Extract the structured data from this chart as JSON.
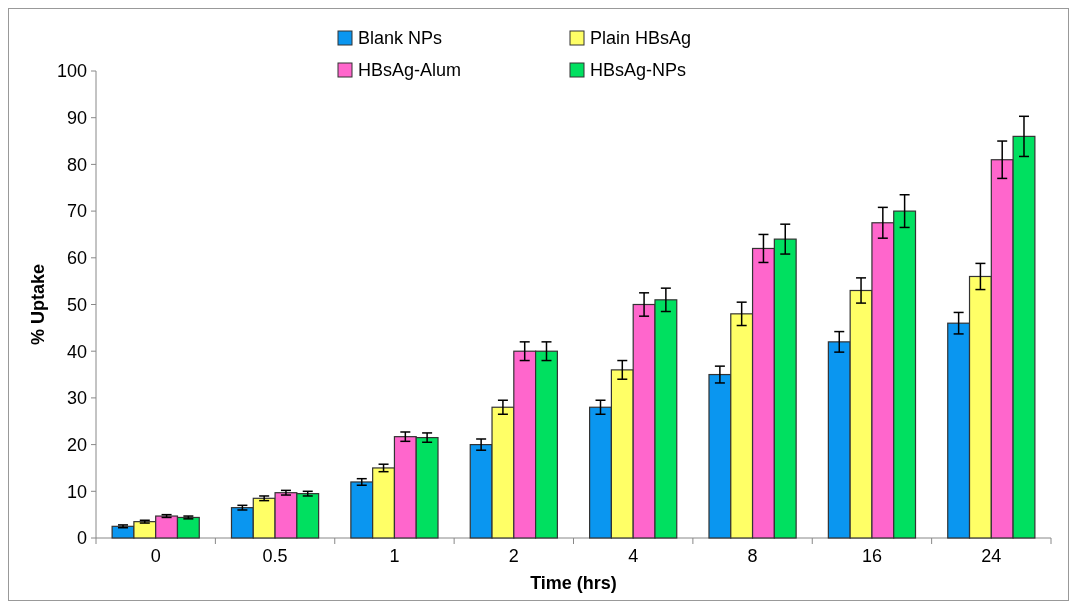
{
  "chart_data": {
    "type": "bar",
    "xlabel": "Time (hrs)",
    "ylabel": "% Uptake",
    "categories": [
      "0",
      "0.5",
      "1",
      "2",
      "4",
      "8",
      "16",
      "24"
    ],
    "series": [
      {
        "name": "Blank NPs",
        "color": "#0a96f0",
        "values": [
          2.5,
          6.5,
          12,
          20,
          28,
          35,
          42,
          46
        ],
        "errors": [
          0.3,
          0.5,
          0.7,
          1.2,
          1.5,
          1.8,
          2.2,
          2.3
        ]
      },
      {
        "name": "Plain HBsAg",
        "color": "#ffff66",
        "values": [
          3.5,
          8.5,
          15,
          28,
          36,
          48,
          53,
          56
        ],
        "errors": [
          0.3,
          0.5,
          0.8,
          1.5,
          2,
          2.5,
          2.7,
          2.8
        ]
      },
      {
        "name": "HBsAg-Alum",
        "color": "#ff66cc",
        "values": [
          4.7,
          9.7,
          21.7,
          40,
          50,
          62,
          67.5,
          81
        ],
        "errors": [
          0.3,
          0.5,
          1,
          2,
          2.5,
          3,
          3.3,
          4
        ]
      },
      {
        "name": "HBsAg-NPs",
        "color": "#00e060",
        "values": [
          4.4,
          9.5,
          21.5,
          40,
          51,
          64,
          70,
          86
        ],
        "errors": [
          0.3,
          0.5,
          1,
          2,
          2.5,
          3.2,
          3.5,
          4.3
        ]
      }
    ],
    "ylim": [
      0,
      100
    ],
    "yticks": [
      0,
      10,
      20,
      30,
      40,
      50,
      60,
      70,
      80,
      90,
      100
    ],
    "grid": false,
    "legend": "top"
  }
}
